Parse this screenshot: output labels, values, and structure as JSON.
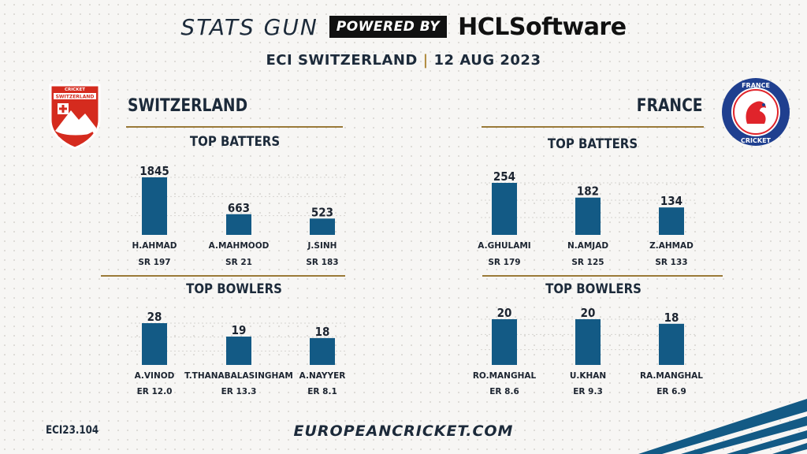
{
  "header": {
    "brand": "STATS GUN",
    "powered_by": "POWERED BY",
    "sponsor": "HCLSoftware",
    "event": "ECI SWITZERLAND",
    "separator": "|",
    "date": "12 AUG 2023"
  },
  "teams": {
    "left": {
      "name": "SWITZERLAND",
      "logo_text_top": "CRICKET",
      "logo_text_main": "SWITZERLAND"
    },
    "right": {
      "name": "FRANCE",
      "logo_text_top": "FRANCE",
      "logo_text_bottom": "CRICKET"
    }
  },
  "colors": {
    "bar": "#135a85",
    "rule": "#9a7a38",
    "text": "#1c2430",
    "swiss_red": "#d52b1e",
    "france_blue": "#1f3f8f"
  },
  "chart_data": [
    {
      "id": "swi-batters",
      "type": "bar",
      "title": "TOP BATTERS",
      "categories": [
        "H.AHMAD",
        "A.MAHMOOD",
        "J.SINH"
      ],
      "values": [
        1845,
        663,
        523
      ],
      "stats": [
        "SR 197",
        "SR 21",
        "SR 183"
      ]
    },
    {
      "id": "swi-bowlers",
      "type": "bar",
      "title": "TOP BOWLERS",
      "categories": [
        "A.VINOD",
        "T.THANABALASINGHAM",
        "A.NAYYER"
      ],
      "values": [
        28,
        19,
        18
      ],
      "stats": [
        "ER 12.0",
        "ER 13.3",
        "ER 8.1"
      ]
    },
    {
      "id": "fra-batters",
      "type": "bar",
      "title": "TOP BATTERS",
      "categories": [
        "A.GHULAMI",
        "N.AMJAD",
        "Z.AHMAD"
      ],
      "values": [
        254,
        182,
        134
      ],
      "stats": [
        "SR 179",
        "SR 125",
        "SR 133"
      ]
    },
    {
      "id": "fra-bowlers",
      "type": "bar",
      "title": "TOP BOWLERS",
      "categories": [
        "RO.MANGHAL",
        "U.KHAN",
        "RA.MANGHAL"
      ],
      "values": [
        20,
        20,
        18
      ],
      "stats": [
        "ER 8.6",
        "ER 9.3",
        "ER 6.9"
      ]
    }
  ],
  "footer": {
    "code": "ECI23.104",
    "website": "EUROPEANCRICKET.COM"
  }
}
